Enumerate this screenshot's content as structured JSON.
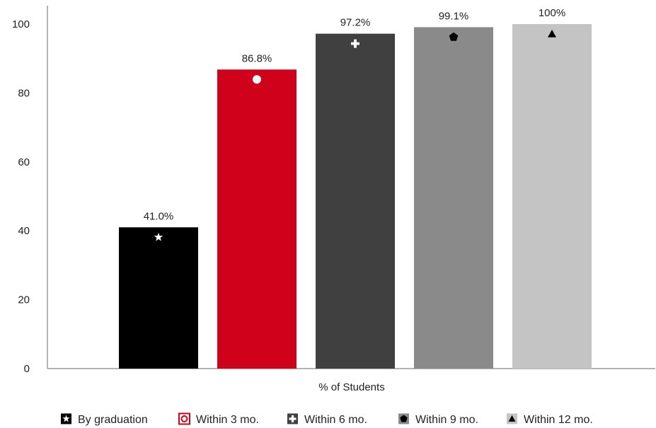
{
  "chart_data": {
    "type": "bar",
    "xlabel": "% of Students",
    "ylabel": "",
    "ylim": [
      0,
      100
    ],
    "yticks": [
      0,
      20,
      40,
      60,
      80,
      100
    ],
    "grid": false,
    "legend_position": "bottom",
    "series": [
      {
        "name": "By graduation",
        "value": 41.0,
        "data_label": "41.0%",
        "color": "#000000",
        "marker": "star",
        "marker_color": "#ffffff"
      },
      {
        "name": "Within 3 mo.",
        "value": 86.8,
        "data_label": "86.8%",
        "color": "#d0021b",
        "marker": "circle",
        "marker_color": "#ffffff"
      },
      {
        "name": "Within 6 mo.",
        "value": 97.2,
        "data_label": "97.2%",
        "color": "#404040",
        "marker": "plus",
        "marker_color": "#ffffff"
      },
      {
        "name": "Within 9 mo.",
        "value": 99.1,
        "data_label": "99.1%",
        "color": "#8a8a8a",
        "marker": "pentagon",
        "marker_color": "#000000"
      },
      {
        "name": "Within 12 mo.",
        "value": 100,
        "data_label": "100%",
        "color": "#c4c4c4",
        "marker": "triangle",
        "marker_color": "#000000"
      }
    ]
  }
}
